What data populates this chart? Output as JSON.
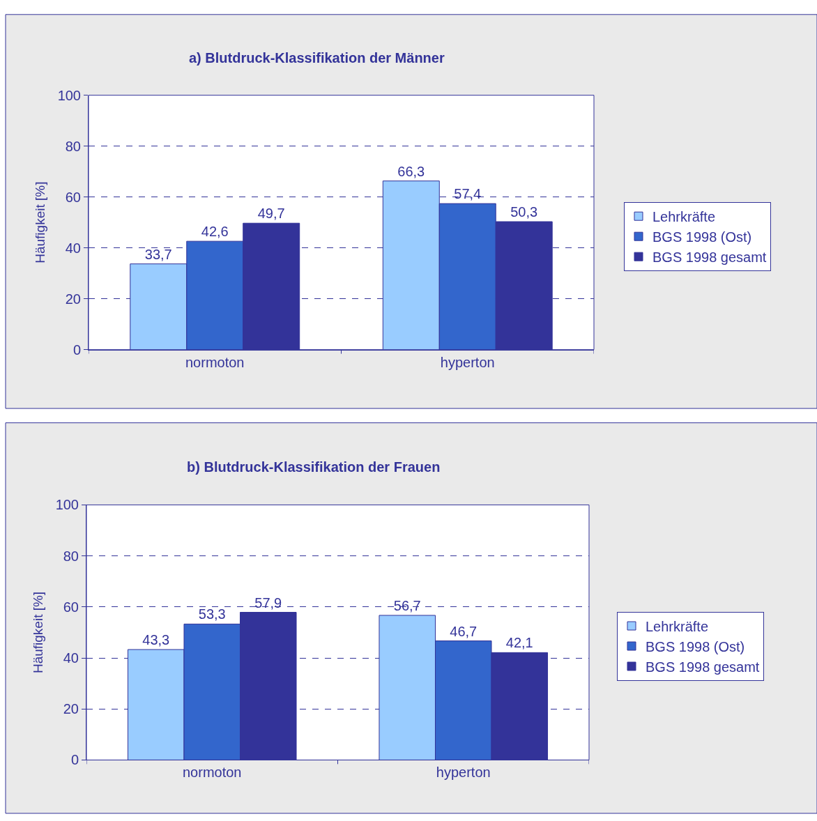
{
  "chart_data": [
    {
      "type": "bar",
      "title": "a) Blutdruck-Klassifikation der Männer",
      "ylabel": "Häufigkeit [%]",
      "categories": [
        "normoton",
        "hyperton"
      ],
      "series": [
        {
          "name": "Lehrkräfte",
          "color": "#99ccff",
          "values": [
            33.7,
            66.3
          ],
          "value_labels": [
            "33,7",
            "66,3"
          ]
        },
        {
          "name": "BGS 1998 (Ost)",
          "color": "#3366cc",
          "values": [
            42.6,
            57.4
          ],
          "value_labels": [
            "42,6",
            "57,4"
          ]
        },
        {
          "name": "BGS 1998 gesamt",
          "color": "#333399",
          "values": [
            49.7,
            50.3
          ],
          "value_labels": [
            "49,7",
            "50,3"
          ]
        }
      ],
      "ylim": [
        0,
        100
      ],
      "yticks": [
        0,
        20,
        40,
        60,
        80,
        100
      ],
      "grid": "y",
      "legend": "right"
    },
    {
      "type": "bar",
      "title": "b) Blutdruck-Klassifikation der Frauen",
      "ylabel": "Häufigkeit [%]",
      "categories": [
        "normoton",
        "hyperton"
      ],
      "series": [
        {
          "name": "Lehrkräfte",
          "color": "#99ccff",
          "values": [
            43.3,
            56.7
          ],
          "value_labels": [
            "43,3",
            "56,7"
          ]
        },
        {
          "name": "BGS 1998 (Ost)",
          "color": "#3366cc",
          "values": [
            53.3,
            46.7
          ],
          "value_labels": [
            "53,3",
            "46,7"
          ]
        },
        {
          "name": "BGS 1998 gesamt",
          "color": "#333399",
          "values": [
            57.9,
            42.1
          ],
          "value_labels": [
            "57,9",
            "42,1"
          ]
        }
      ],
      "ylim": [
        0,
        100
      ],
      "yticks": [
        0,
        20,
        40,
        60,
        80,
        100
      ],
      "grid": "y",
      "legend": "right"
    }
  ]
}
